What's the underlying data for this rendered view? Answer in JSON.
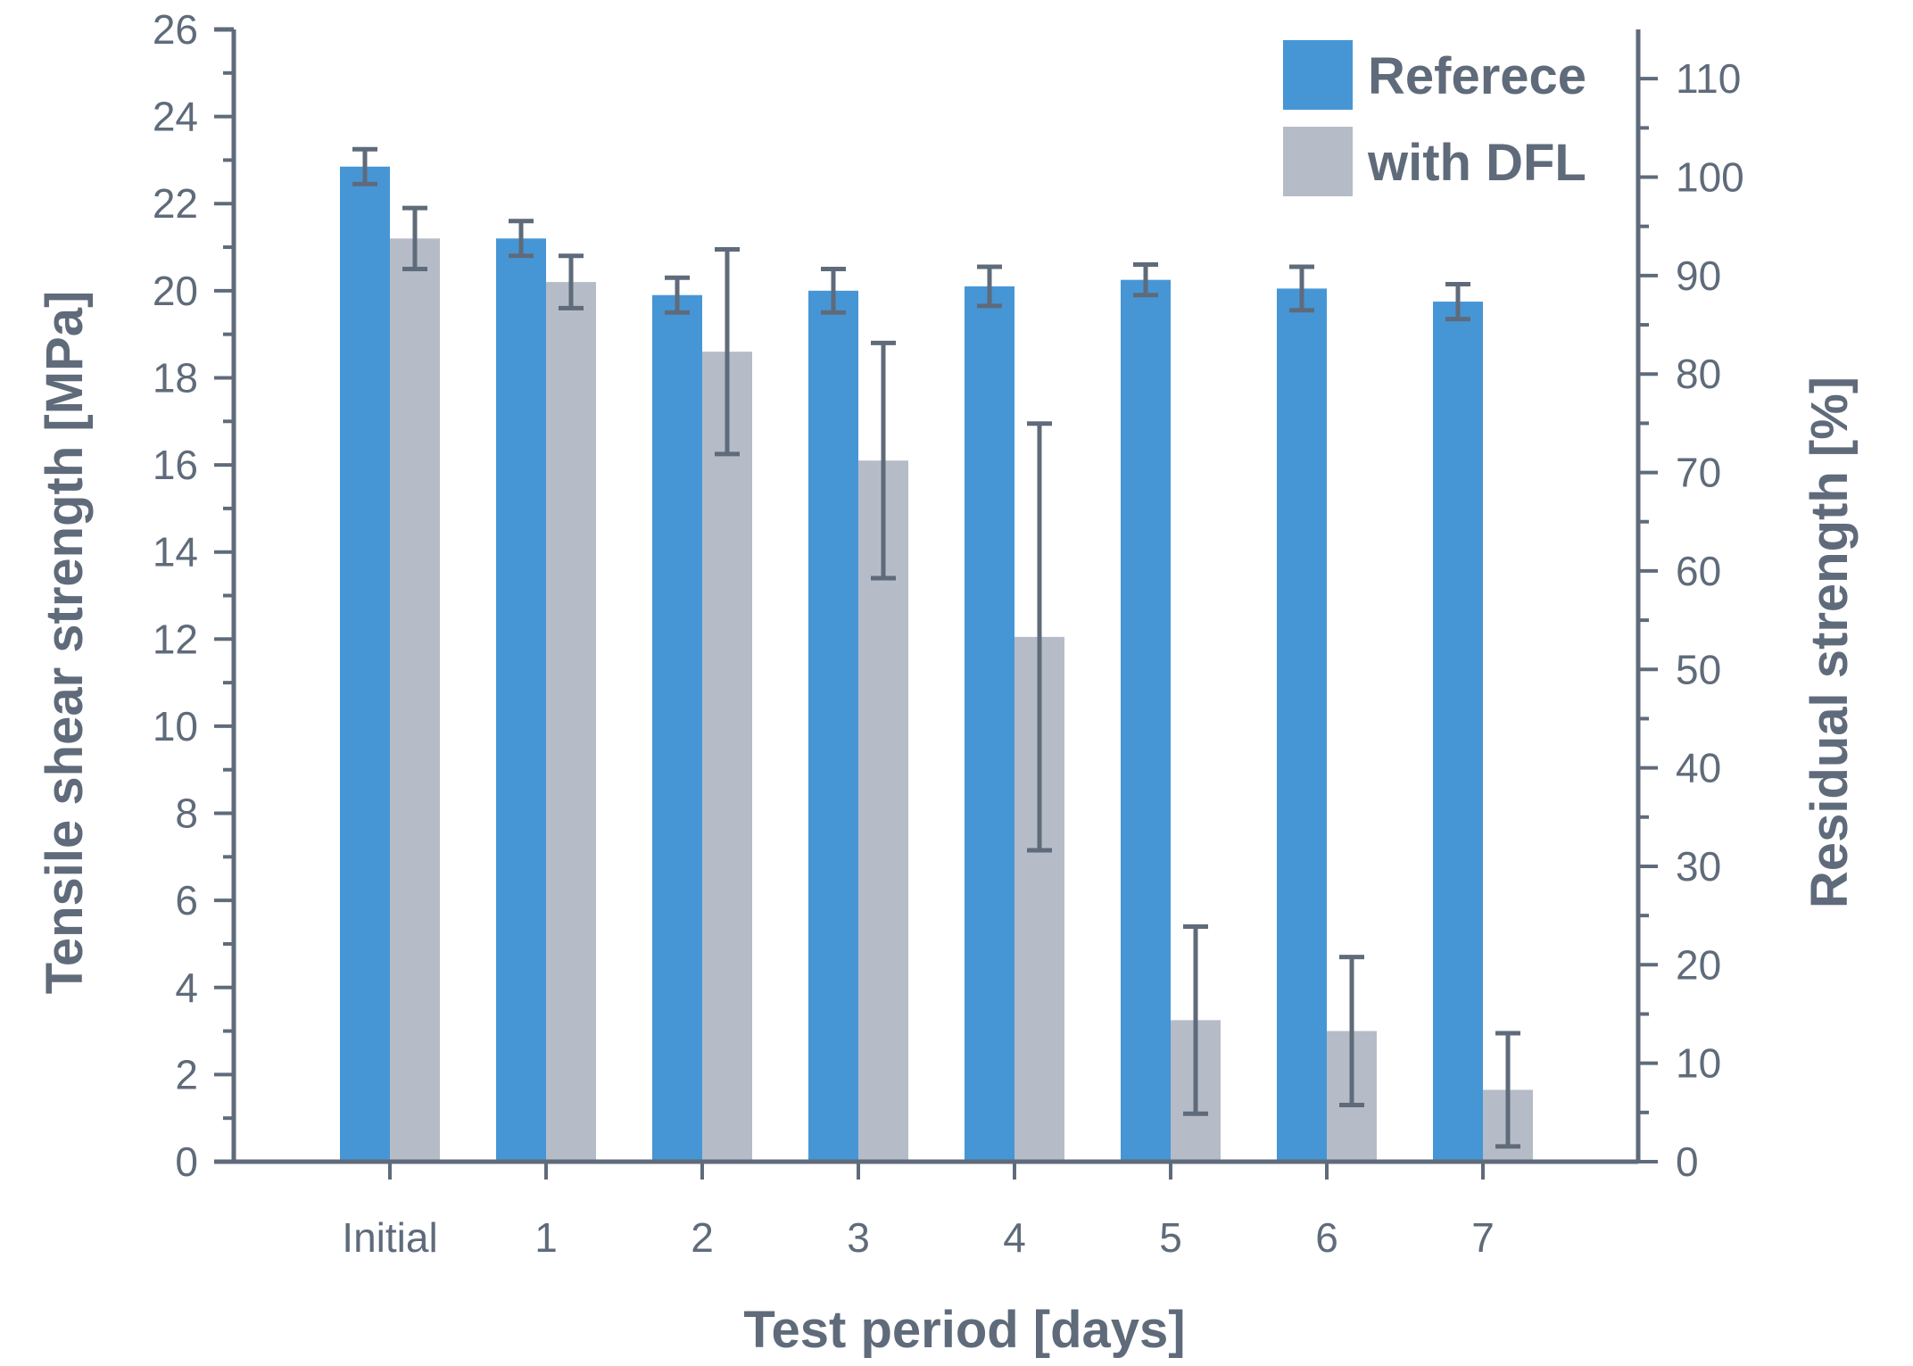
{
  "colors": {
    "axis": "#5f6b7a",
    "reference": "#4696d6",
    "dfl": "#b5bcc8",
    "errorbar": "#5f6b7a"
  },
  "chart_data": {
    "type": "bar",
    "xlabel": "Test period [days]",
    "ylabel": "Tensile shear strength [MPa]",
    "y2label": "Residual strength [%]",
    "categories": [
      "Initial",
      "1",
      "2",
      "3",
      "4",
      "5",
      "6",
      "7"
    ],
    "ylim": [
      0,
      26
    ],
    "yticks": [
      "0",
      "2",
      "4",
      "6",
      "8",
      "10",
      "12",
      "14",
      "16",
      "18",
      "20",
      "22",
      "24",
      "26"
    ],
    "y2lim": [
      0,
      115
    ],
    "y2ticks": [
      "0",
      "10",
      "20",
      "30",
      "40",
      "50",
      "60",
      "70",
      "80",
      "90",
      "100",
      "110"
    ],
    "legend_position": "top-right",
    "grid": false,
    "series": [
      {
        "name": "Referece",
        "color": "#4696d6",
        "values": [
          22.85,
          21.2,
          19.9,
          20.0,
          20.1,
          20.25,
          20.05,
          19.75
        ],
        "errors": [
          0.4,
          0.4,
          0.4,
          0.5,
          0.45,
          0.35,
          0.5,
          0.4
        ]
      },
      {
        "name": "with DFL",
        "color": "#b5bcc8",
        "values": [
          21.2,
          20.2,
          18.6,
          16.1,
          12.05,
          3.25,
          3.0,
          1.65
        ],
        "errors": [
          0.7,
          0.6,
          2.35,
          2.7,
          4.9,
          2.15,
          1.7,
          1.3
        ]
      }
    ]
  }
}
